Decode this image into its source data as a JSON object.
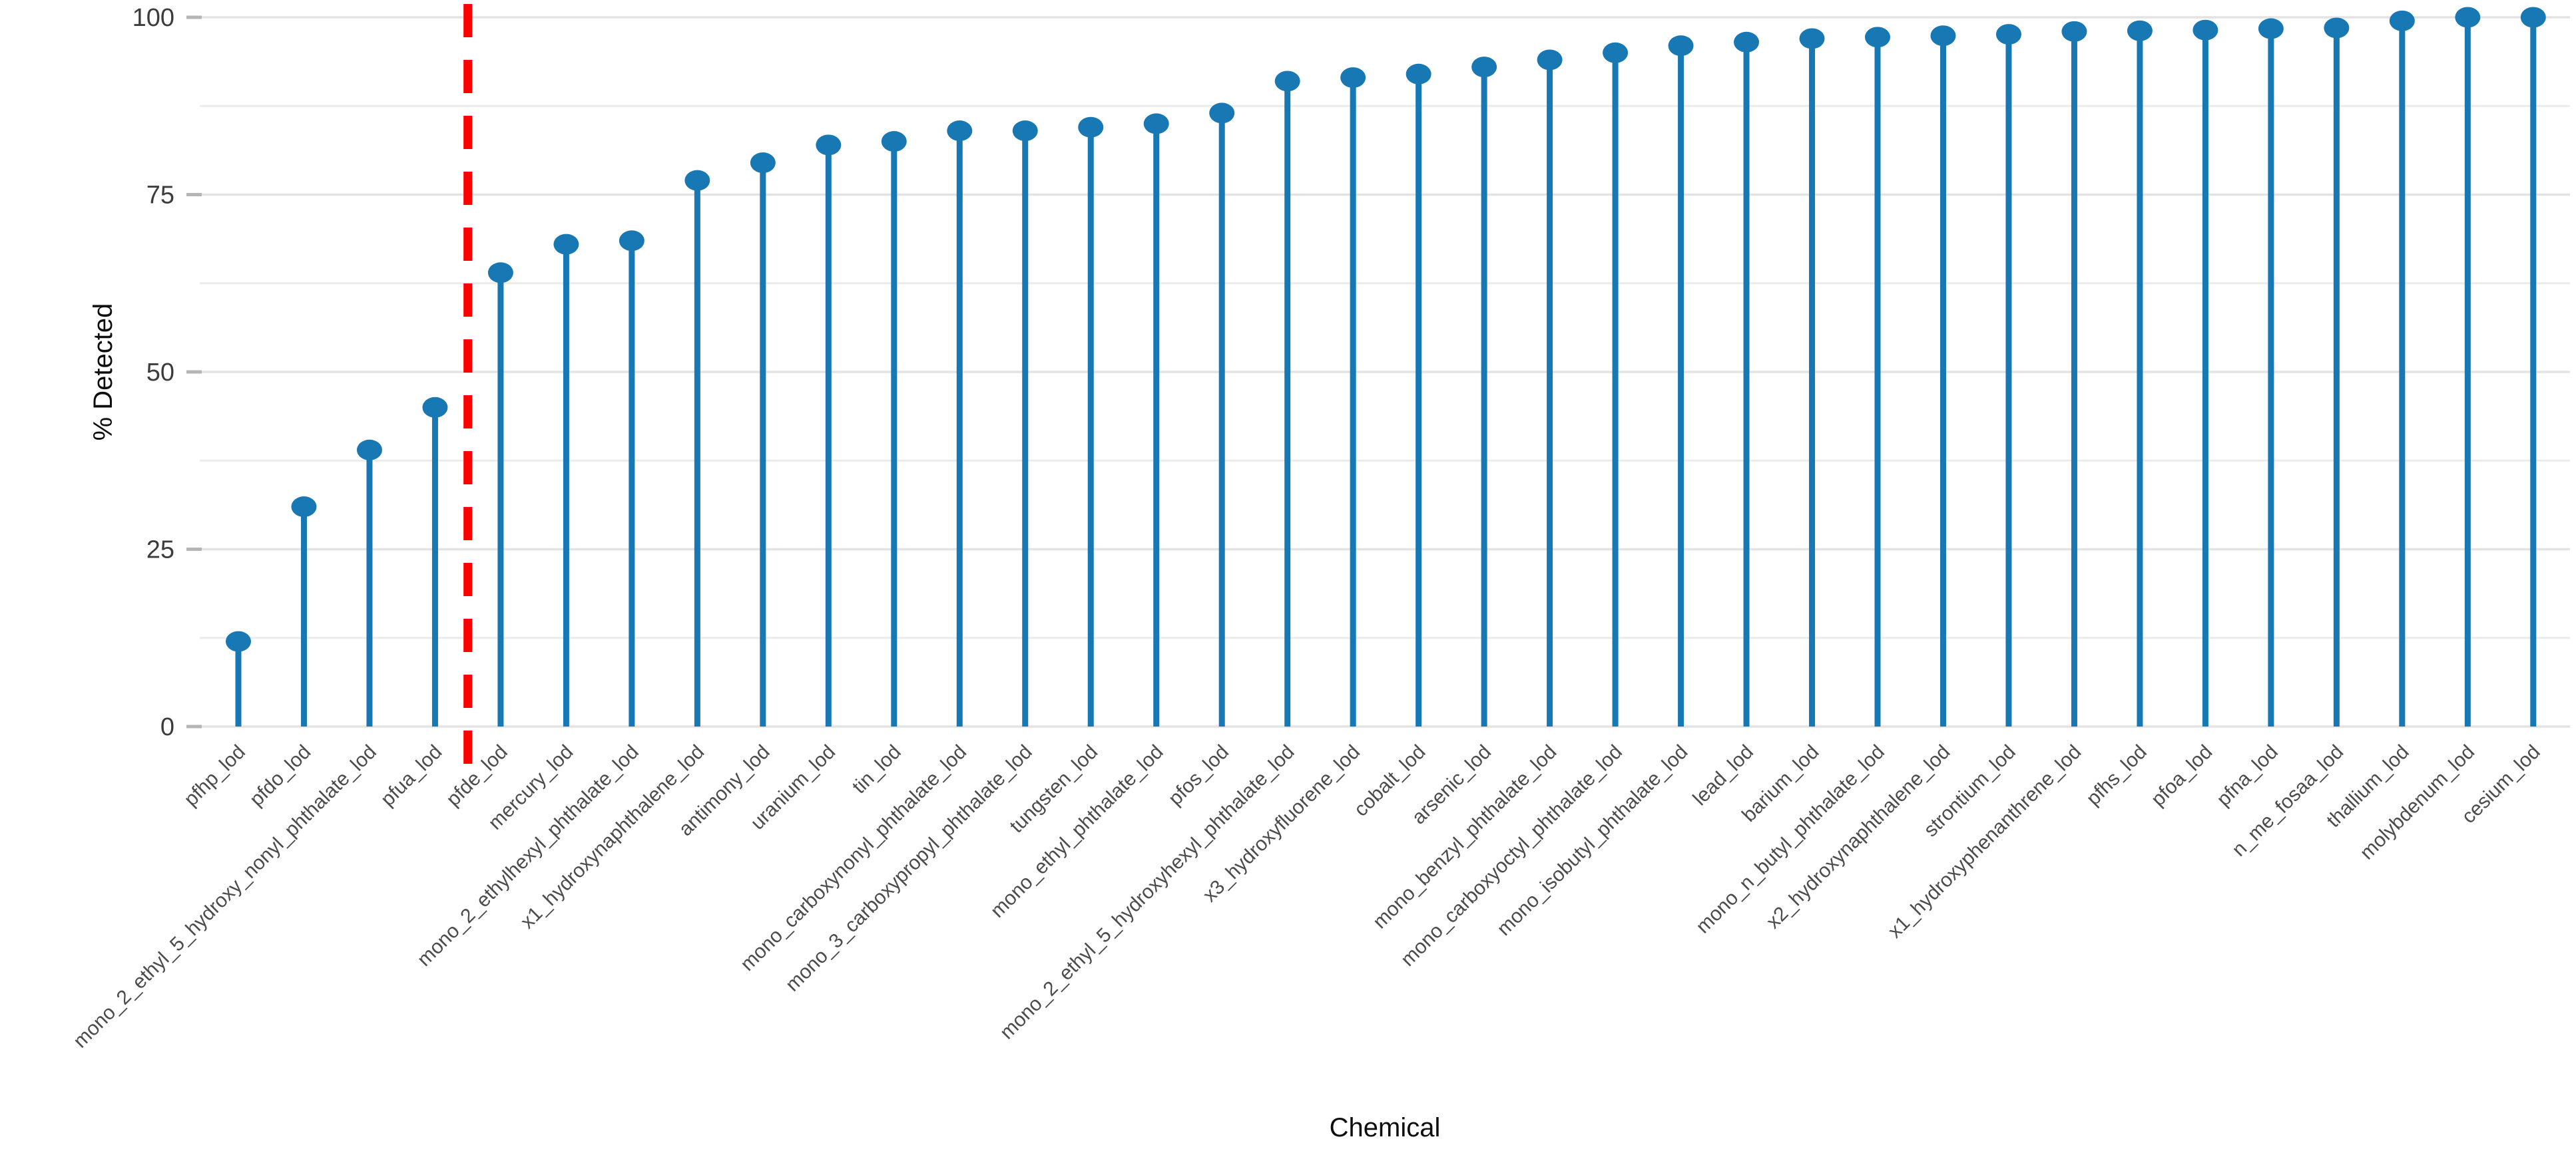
{
  "figure": {
    "background": "#ffffff",
    "description": "Lollipop chart of percent detected per chemical with a red dashed vertical reference line"
  },
  "colors": {
    "stem": "#1878b4",
    "dot": "#1878b4",
    "reference_line": "#ff0000",
    "gridline_major": "#e3e3e3",
    "gridline_minor": "#ebebeb",
    "tick_mark": "#b5b5b5",
    "tick_text": "#3c3c3c",
    "category_text": "#4c4c4c",
    "axis_title_text": "#0e0e0e"
  },
  "chart_data": {
    "type": "lollipop",
    "title": "",
    "xlabel": "Chemical",
    "ylabel": "% Detected",
    "ylim": [
      0,
      100
    ],
    "yticks": [
      0,
      25,
      50,
      75,
      100
    ],
    "minor_grid_step": 12.5,
    "grid": true,
    "legend": "none",
    "categories": [
      "pfhp_lod",
      "pfdo_lod",
      "mono_2_ethyl_5_hydroxy_nonyl_phthalate_lod",
      "pfua_lod",
      "pfde_lod",
      "mercury_lod",
      "mono_2_ethylhexyl_phthalate_lod",
      "x1_hydroxynaphthalene_lod",
      "antimony_lod",
      "uranium_lod",
      "tin_lod",
      "mono_carboxynonyl_phthalate_lod",
      "mono_3_carboxypropyl_phthalate_lod",
      "tungsten_lod",
      "mono_ethyl_phthalate_lod",
      "pfos_lod",
      "mono_2_ethyl_5_hydroxyhexyl_phthalate_lod",
      "x3_hydroxyfluorene_lod",
      "cobalt_lod",
      "arsenic_lod",
      "mono_benzyl_phthalate_lod",
      "mono_carboxyoctyl_phthalate_lod",
      "mono_isobutyl_phthalate_lod",
      "lead_lod",
      "barium_lod",
      "mono_n_butyl_phthalate_lod",
      "x2_hydroxynaphthalene_lod",
      "strontium_lod",
      "x1_hydroxyphenanthrene_lod",
      "pfhs_lod",
      "pfoa_lod",
      "pfna_lod",
      "n_me_fosaa_lod",
      "thallium_lod",
      "molybdenum_lod",
      "cesium_lod"
    ],
    "values": [
      12,
      31,
      39,
      45,
      64,
      68,
      68.5,
      77,
      79.5,
      82,
      82.5,
      84,
      84,
      84.5,
      85,
      86.5,
      91,
      91.5,
      92,
      93,
      94,
      95,
      96,
      96.5,
      97,
      97.2,
      97.4,
      97.6,
      98,
      98.1,
      98.2,
      98.4,
      98.5,
      99.5,
      100,
      100
    ],
    "reference_line": {
      "orientation": "vertical",
      "style": "dashed",
      "color": "#ff0000",
      "after_category": "pfua_lod",
      "between_index": 3.5
    }
  }
}
